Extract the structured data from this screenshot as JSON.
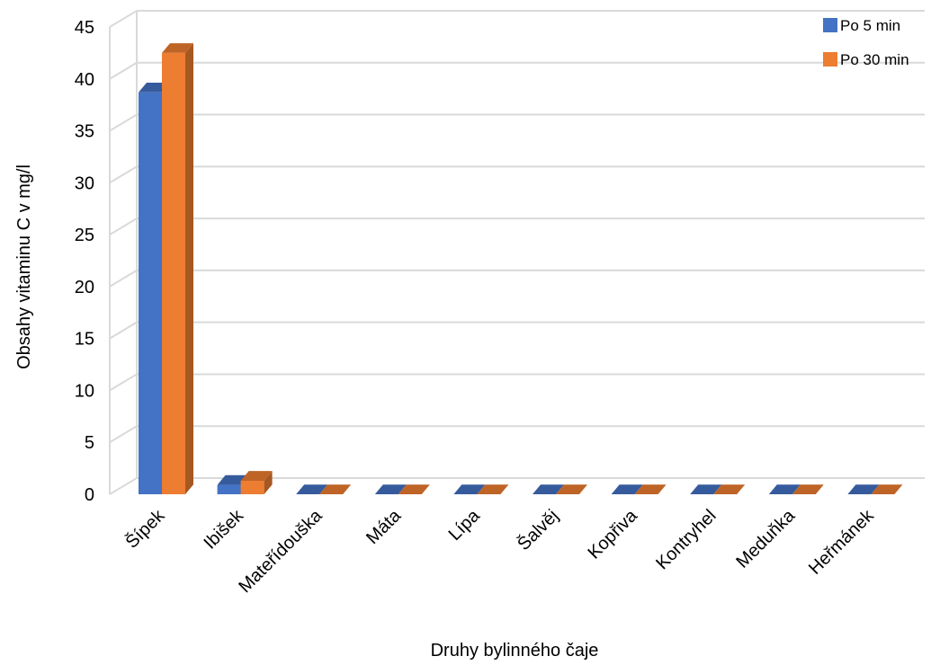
{
  "chart_data": {
    "type": "bar",
    "style": "3d-clustered-column",
    "title": "",
    "xlabel": "Druhy bylinného čaje",
    "ylabel": "Obsahy vitaminu C v mg/l",
    "ylim": [
      0,
      45
    ],
    "ytick_step": 5,
    "yticks": [
      "0",
      "5",
      "10",
      "15",
      "20",
      "25",
      "30",
      "35",
      "40",
      "45"
    ],
    "grid": true,
    "legend_position": "top-right",
    "categories": [
      "Šípek",
      "Ibišek",
      "Mateřídouška",
      "Máta",
      "Lípa",
      "Šalvěj",
      "Kopřiva",
      "Kontryhel",
      "Meduňka",
      "Heřmánek"
    ],
    "series": [
      {
        "name": "Po 5 min",
        "color": "#4472C4",
        "values": [
          38.7,
          0.9,
          0,
          0,
          0,
          0,
          0,
          0,
          0,
          0
        ]
      },
      {
        "name": "Po 30 min",
        "color": "#ED7D31",
        "values": [
          42.5,
          1.3,
          0,
          0,
          0,
          0,
          0,
          0,
          0,
          0
        ]
      }
    ]
  }
}
